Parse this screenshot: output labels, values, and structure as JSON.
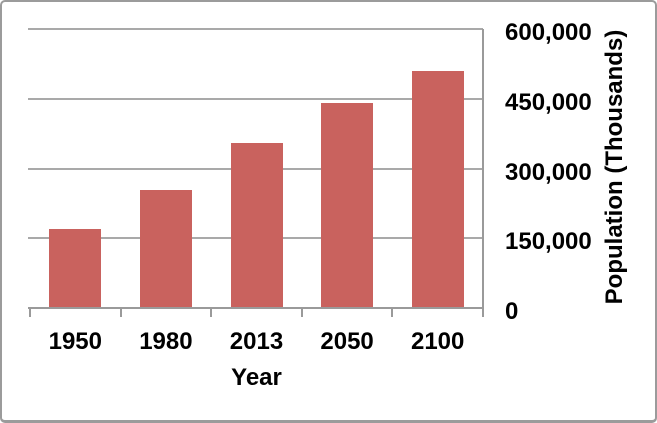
{
  "chart_data": {
    "type": "bar",
    "title": "",
    "categories": [
      "1950",
      "1980",
      "2013",
      "2050",
      "2100"
    ],
    "values": [
      170000,
      253000,
      354000,
      440000,
      510000
    ],
    "xlabel": "Year",
    "ylabel": "Population (Thousands)",
    "ylim": [
      0,
      600000
    ],
    "ytick_values": [
      0,
      150000,
      300000,
      450000,
      600000
    ],
    "ytick_labels": [
      "0",
      "150,000",
      "300,000",
      "450,000",
      "600,000"
    ],
    "yaxis_side": "right",
    "grid": "horizontal",
    "legend": "none",
    "colors": {
      "bar": "#C9625E",
      "gridline": "#A9A9A9",
      "axis": "#9A9A9A",
      "text": "#000000",
      "frame_border": "#9B9B9B",
      "background": "#FFFFFF"
    }
  }
}
